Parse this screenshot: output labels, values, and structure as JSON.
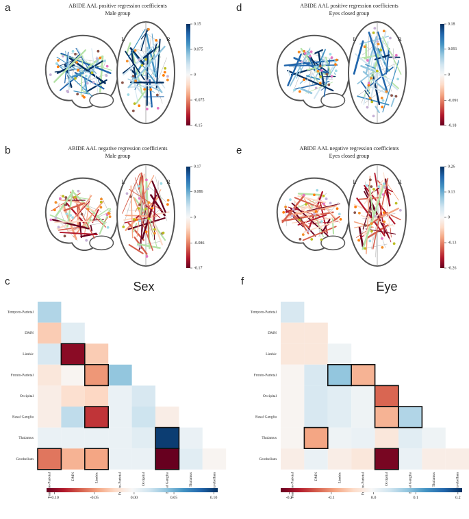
{
  "colormap": [
    "#67001f",
    "#b2182b",
    "#d6604d",
    "#f4a582",
    "#fddbc7",
    "#f7f7f7",
    "#d1e5f0",
    "#92c5de",
    "#4393c3",
    "#2166ac",
    "#053061"
  ],
  "chart_data": [
    {
      "type": "brain",
      "panel_label": "a",
      "title": "ABIDE AAL positive regression coefficients",
      "subtitle": "Male group",
      "hemisphere_labels": [
        "L",
        "R"
      ],
      "clim": [
        -0.15,
        0.15
      ],
      "cticks": [
        0.15,
        0.075,
        0,
        -0.075,
        -0.15
      ]
    },
    {
      "type": "brain",
      "panel_label": "d",
      "title": "ABIDE AAL positive regression coefficients",
      "subtitle": "Eyes closed group",
      "hemisphere_labels": [
        "L",
        "R"
      ],
      "clim": [
        -0.18,
        0.18
      ],
      "cticks": [
        0.18,
        0.091,
        0,
        -0.091,
        -0.18
      ]
    },
    {
      "type": "brain",
      "panel_label": "b",
      "title": "ABIDE AAL negative regression coefficients",
      "subtitle": "Male group",
      "hemisphere_labels": [
        "L",
        "R"
      ],
      "clim": [
        -0.17,
        0.17
      ],
      "cticks": [
        0.17,
        0.086,
        0,
        -0.086,
        -0.17
      ]
    },
    {
      "type": "brain",
      "panel_label": "e",
      "title": "ABIDE AAL negative regression coefficients",
      "subtitle": "Eyes closed group",
      "hemisphere_labels": [
        "L",
        "R"
      ],
      "clim": [
        -0.26,
        0.26
      ],
      "cticks": [
        0.26,
        0.13,
        0,
        -0.13,
        -0.26
      ]
    },
    {
      "type": "heatmap",
      "panel_label": "c",
      "title": "Sex",
      "categories": [
        "Temporo-Parietal",
        "DMN",
        "Limbic",
        "Fronto-Parietal",
        "Occipital",
        "Basal Ganglia",
        "Thalamus",
        "Cerebellum"
      ],
      "values": [
        [
          0.03
        ],
        [
          -0.03,
          0.01
        ],
        [
          0.015,
          -0.1,
          -0.03
        ],
        [
          -0.015,
          -0.005,
          -0.05,
          0.04
        ],
        [
          -0.01,
          -0.02,
          -0.025,
          0.005,
          0.015
        ],
        [
          -0.01,
          0.025,
          -0.08,
          0.005,
          0.02,
          -0.01
        ],
        [
          0.005,
          0.005,
          0.005,
          0.005,
          0.01,
          0.1,
          0.005
        ],
        [
          -0.06,
          -0.04,
          -0.045,
          0.005,
          0.005,
          -0.11,
          0.01,
          -0.005
        ]
      ],
      "outlined": [
        [
          2,
          1
        ],
        [
          3,
          2
        ],
        [
          5,
          2
        ],
        [
          6,
          5
        ],
        [
          7,
          0
        ],
        [
          7,
          2
        ],
        [
          7,
          5
        ]
      ],
      "clim": [
        -0.11,
        0.105
      ],
      "cticks": [
        {
          "value": -0.1,
          "label": "-0.10"
        },
        -0.05,
        {
          "value": 0,
          "label": "0.00"
        },
        0.05,
        {
          "value": 0.1,
          "label": "0.10"
        }
      ]
    },
    {
      "type": "heatmap",
      "panel_label": "f",
      "title": "Eye",
      "categories": [
        "Temporo-Parietal",
        "DMN",
        "Limbic",
        "Fronto-Parietal",
        "Occipital",
        "Basal Ganglia",
        "Thalamus",
        "Cerebellum"
      ],
      "values": [
        [
          0.03
        ],
        [
          -0.03,
          -0.03
        ],
        [
          -0.03,
          -0.03,
          0.005
        ],
        [
          -0.01,
          0.03,
          0.08,
          -0.08
        ],
        [
          -0.01,
          0.03,
          0.02,
          0.005,
          -0.13
        ],
        [
          -0.01,
          0.03,
          0.02,
          0.005,
          -0.08,
          0.06
        ],
        [
          -0.01,
          -0.09,
          0.005,
          0.01,
          -0.03,
          0.02,
          0.005
        ],
        [
          -0.02,
          0.01,
          -0.02,
          -0.03,
          -0.21,
          0.01,
          -0.02,
          -0.02
        ]
      ],
      "outlined": [
        [
          3,
          2
        ],
        [
          3,
          3
        ],
        [
          4,
          4
        ],
        [
          5,
          4
        ],
        [
          5,
          5
        ],
        [
          6,
          1
        ],
        [
          7,
          4
        ]
      ],
      "clim": [
        -0.22,
        0.21
      ],
      "cticks": [
        -0.2,
        -0.1,
        {
          "value": 0,
          "label": "0.0"
        },
        0.1,
        0.2
      ]
    }
  ]
}
